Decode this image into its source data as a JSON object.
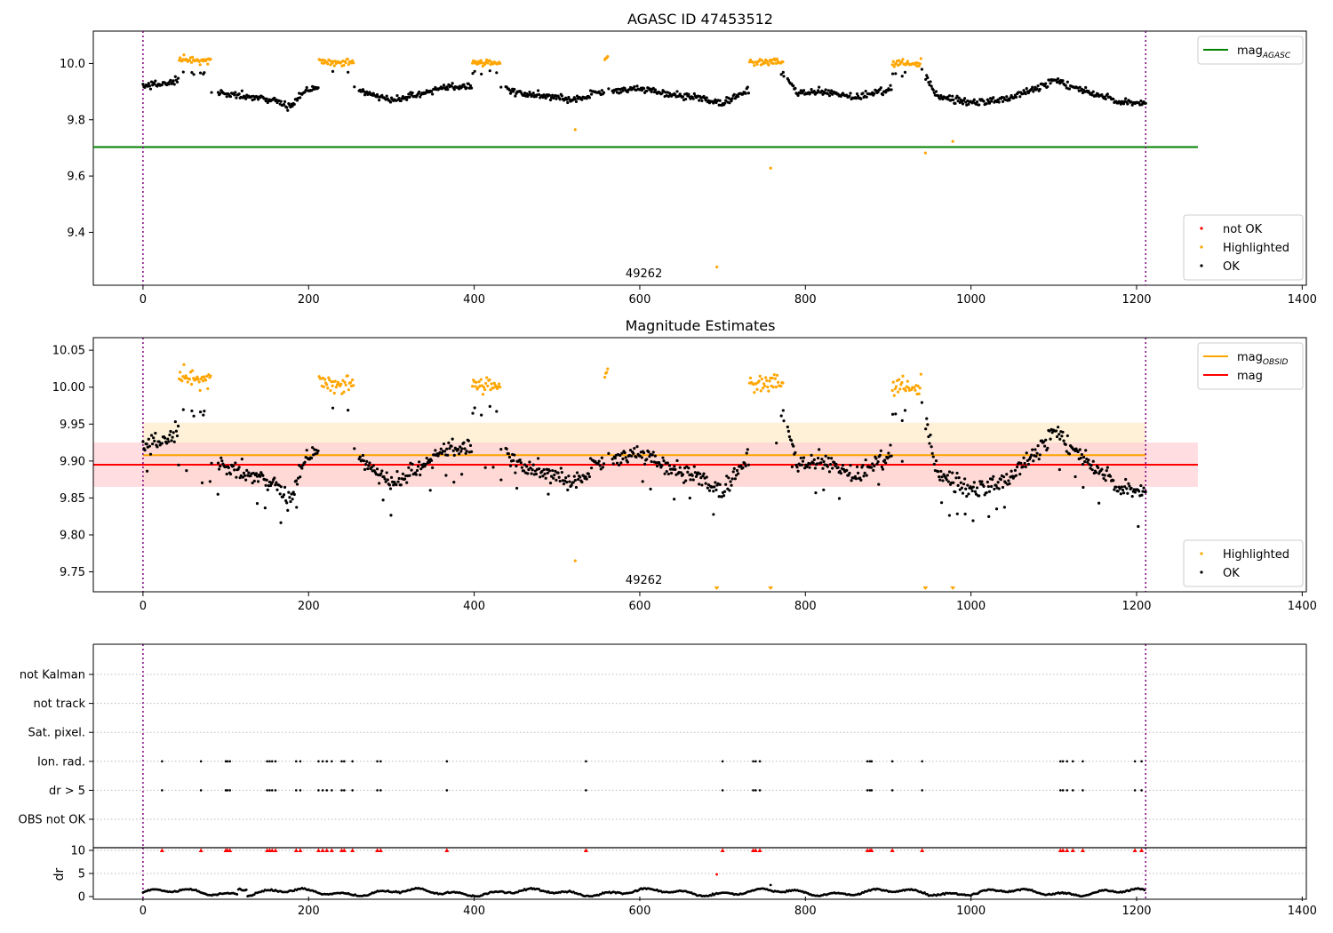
{
  "colors": {
    "ok": "#000000",
    "highlighted": "#ffa500",
    "not_ok": "#ff0000",
    "mag_agasc": "#008000",
    "mag_obsid": "#ffa500",
    "mag": "#ff0000",
    "obs_boundary": "#800080",
    "band_obsid": "#fdebc8",
    "band_mag": "#ffcfd4"
  },
  "chart_data": [
    {
      "id": "top",
      "type": "scatter",
      "title": "AGASC ID 47453512",
      "xlim": [
        -60,
        1405
      ],
      "ylim": [
        9.212,
        10.115
      ],
      "xticks": [
        0,
        200,
        400,
        600,
        800,
        1000,
        1200,
        1400
      ],
      "yticks": [
        9.4,
        9.6,
        9.8,
        10.0
      ],
      "ytick_labels": [
        "9.4",
        "9.6",
        "9.8",
        "10.0"
      ],
      "obs_boundaries": [
        0,
        1211
      ],
      "obsid_label": {
        "text": "49262",
        "x": 605
      },
      "lines": [
        {
          "name": "mag_AGASC",
          "y": 9.703,
          "x": [
            -60,
            1274
          ],
          "color": "#008000"
        }
      ],
      "outliers": [
        {
          "x": 522,
          "y": 9.765
        },
        {
          "x": 758,
          "y": 9.628
        },
        {
          "x": 945,
          "y": 9.682
        },
        {
          "x": 978,
          "y": 9.723
        },
        {
          "x": 693,
          "y": 9.277
        }
      ],
      "legends": [
        {
          "position": "top-right",
          "items": [
            {
              "label": "mag",
              "sub": "AGASC",
              "kind": "line",
              "color": "#008000"
            }
          ]
        },
        {
          "position": "bottom-right",
          "items": [
            {
              "label": "not OK",
              "kind": "dot",
              "color": "#ff0000"
            },
            {
              "label": "Highlighted",
              "kind": "dot",
              "color": "#ffa500"
            },
            {
              "label": "OK",
              "kind": "dot",
              "color": "#000000"
            }
          ]
        }
      ]
    },
    {
      "id": "mid",
      "type": "scatter",
      "title": "Magnitude Estimates",
      "xlim": [
        -60,
        1405
      ],
      "ylim": [
        9.723,
        10.067
      ],
      "xticks": [
        0,
        200,
        400,
        600,
        800,
        1000,
        1200,
        1400
      ],
      "yticks": [
        9.75,
        9.8,
        9.85,
        9.9,
        9.95,
        10.0,
        10.05
      ],
      "ytick_labels": [
        "9.75",
        "9.80",
        "9.85",
        "9.90",
        "9.95",
        "10.00",
        "10.05"
      ],
      "obs_boundaries": [
        0,
        1211
      ],
      "obsid_label": {
        "text": "49262",
        "x": 605
      },
      "bands": [
        {
          "name": "mag_OBSID band",
          "y0": 9.866,
          "y1": 9.952,
          "x": [
            0,
            1211
          ],
          "color": "#fdebc8"
        },
        {
          "name": "mag band",
          "y0": 9.865,
          "y1": 9.925,
          "x": [
            -60,
            1274
          ],
          "color": "#ffcfd4"
        }
      ],
      "lines": [
        {
          "name": "mag_OBSID",
          "y": 9.908,
          "x": [
            0,
            1211
          ],
          "color": "#ffa500"
        },
        {
          "name": "mag",
          "y": 9.895,
          "x": [
            -60,
            1274
          ],
          "color": "#ff0000"
        }
      ],
      "outliers": [
        {
          "x": 522,
          "y": 9.765
        }
      ],
      "below_markers": [
        693,
        758,
        945,
        978
      ],
      "legends": [
        {
          "position": "top-right",
          "items": [
            {
              "label": "mag",
              "sub": "OBSID",
              "kind": "line",
              "color": "#ffa500"
            },
            {
              "label": "mag",
              "kind": "line",
              "color": "#ff0000"
            }
          ]
        },
        {
          "position": "bottom-right",
          "items": [
            {
              "label": "Highlighted",
              "kind": "dot",
              "color": "#ffa500"
            },
            {
              "label": "OK",
              "kind": "dot",
              "color": "#000000"
            }
          ]
        }
      ]
    },
    {
      "id": "flags",
      "type": "scatter",
      "xlim": [
        -60,
        1405
      ],
      "rows": [
        "not Kalman",
        "not track",
        "Sat. pixel.",
        "Ion. rad.",
        "dr > 5",
        "OBS not OK"
      ],
      "flagged_x": [
        23,
        70,
        100,
        102,
        105,
        150,
        153,
        156,
        160,
        185,
        190,
        212,
        217,
        222,
        228,
        240,
        243,
        253,
        283,
        287,
        367,
        535,
        700,
        737,
        740,
        745,
        875,
        878,
        880,
        905,
        941,
        1108,
        1111,
        1116,
        1123,
        1135,
        1198,
        1206
      ],
      "flagged_rows": [
        "Ion. rad.",
        "dr > 5"
      ]
    },
    {
      "id": "dr",
      "type": "scatter",
      "ylabel": "dr",
      "xlim": [
        -60,
        1405
      ],
      "ylim": [
        0,
        10
      ],
      "xticks": [
        0,
        200,
        400,
        600,
        800,
        1000,
        1200,
        1400
      ],
      "yticks": [
        0,
        5,
        10
      ],
      "ytick_labels": [
        "0",
        "5",
        "10"
      ],
      "flag_line_y": 10,
      "extra_points": [
        {
          "x": 693,
          "y": 4.8,
          "color": "#ff0000"
        },
        {
          "x": 758,
          "y": 2.5,
          "color": "#000000"
        }
      ]
    }
  ]
}
